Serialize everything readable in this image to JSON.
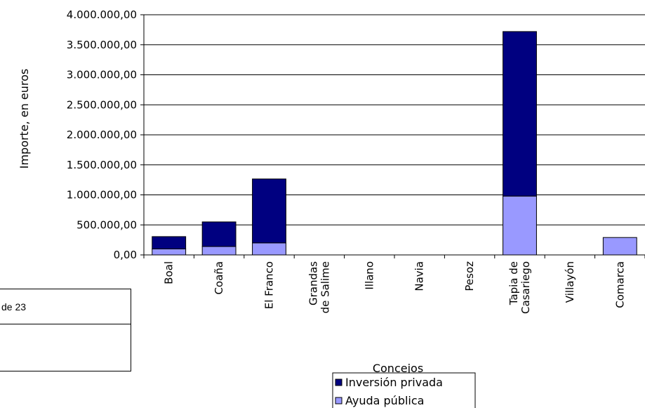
{
  "side_box": {
    "text": "de 23"
  },
  "chart_data": {
    "type": "bar",
    "stacked": true,
    "categories": [
      [
        "Boal"
      ],
      [
        "Coaña"
      ],
      [
        "El Franco"
      ],
      [
        "Grandas",
        "de Salime"
      ],
      [
        "Illano"
      ],
      [
        "Navia"
      ],
      [
        "Pesoz"
      ],
      [
        "Tapia de",
        "Casariego"
      ],
      [
        "Villayón"
      ],
      [
        "Comarca"
      ]
    ],
    "series": [
      {
        "name": "Ayuda pública",
        "color": "#9999ff",
        "values": [
          100000,
          140000,
          200000,
          0,
          0,
          0,
          0,
          980000,
          0,
          290000
        ]
      },
      {
        "name": "Inversión privada",
        "color": "#000080",
        "values": [
          205000,
          410000,
          1065000,
          0,
          0,
          0,
          0,
          2740000,
          0,
          0
        ]
      }
    ],
    "ylim": [
      0,
      4000000
    ],
    "yticks": [
      "0,00",
      "500.000,00",
      "1.000.000,00",
      "1.500.000,00",
      "2.000.000,00",
      "2.500.000,00",
      "3.000.000,00",
      "3.500.000,00",
      "4.000.000,00"
    ],
    "xlabel": "Concejos",
    "ylabel": "Importe, en euros",
    "grid": true,
    "legend": {
      "placement": "bottom",
      "entries": [
        "Inversión privada",
        "Ayuda pública"
      ]
    }
  }
}
